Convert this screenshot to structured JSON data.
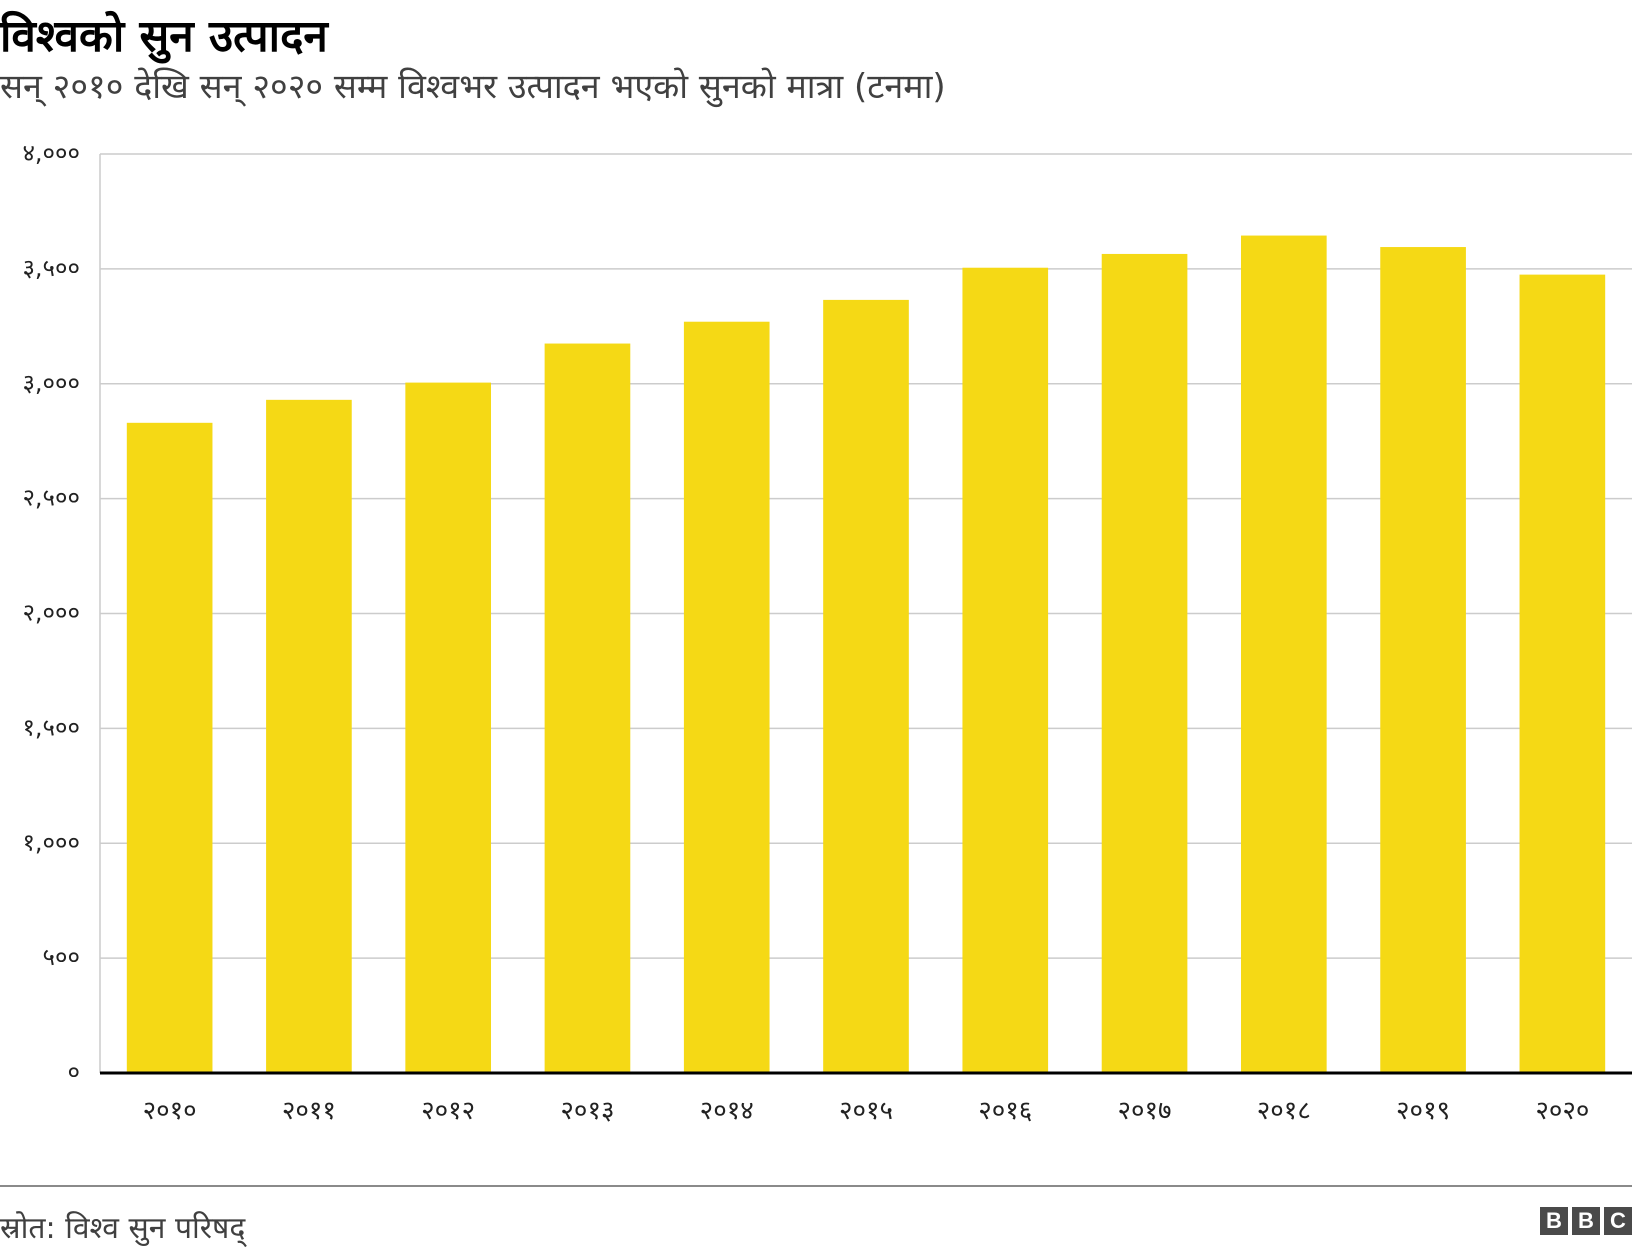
{
  "header": {
    "title": "विश्वको सुन उत्पादन",
    "subtitle": "सन् २०१० देखि सन् २०२० सम्म विश्वभर उत्पादन भएको सुनको मात्रा (टनमा)"
  },
  "footer": {
    "source": "स्रोत: विश्व सुन परिषद्",
    "logo": [
      "B",
      "B",
      "C"
    ]
  },
  "chart_data": {
    "type": "bar",
    "title": "विश्वको सुन उत्पादन",
    "subtitle": "सन् २०१० देखि सन् २०२० सम्म विश्वभर उत्पादन भएको सुनको मात्रा (टनमा)",
    "categories": [
      "२०१०",
      "२०११",
      "२०१२",
      "२०१३",
      "२०१४",
      "२०१५",
      "२०१६",
      "२०१७",
      "२०१८",
      "२०१९",
      "२०२०"
    ],
    "values": [
      2830,
      2930,
      3005,
      3175,
      3270,
      3365,
      3505,
      3565,
      3645,
      3595,
      3475
    ],
    "ylim": [
      0,
      4000
    ],
    "yticks": [
      0,
      500,
      1000,
      1500,
      2000,
      2500,
      3000,
      3500,
      4000
    ],
    "ytick_labels": [
      "०",
      "५००",
      "१,०००",
      "१,५००",
      "२,०००",
      "२,५००",
      "३,०००",
      "३,५००",
      "४,०००"
    ],
    "grid": true,
    "legend": "none",
    "bar_color": "#f5d915",
    "grid_color": "#cccccc",
    "baseline_color": "#000000"
  }
}
